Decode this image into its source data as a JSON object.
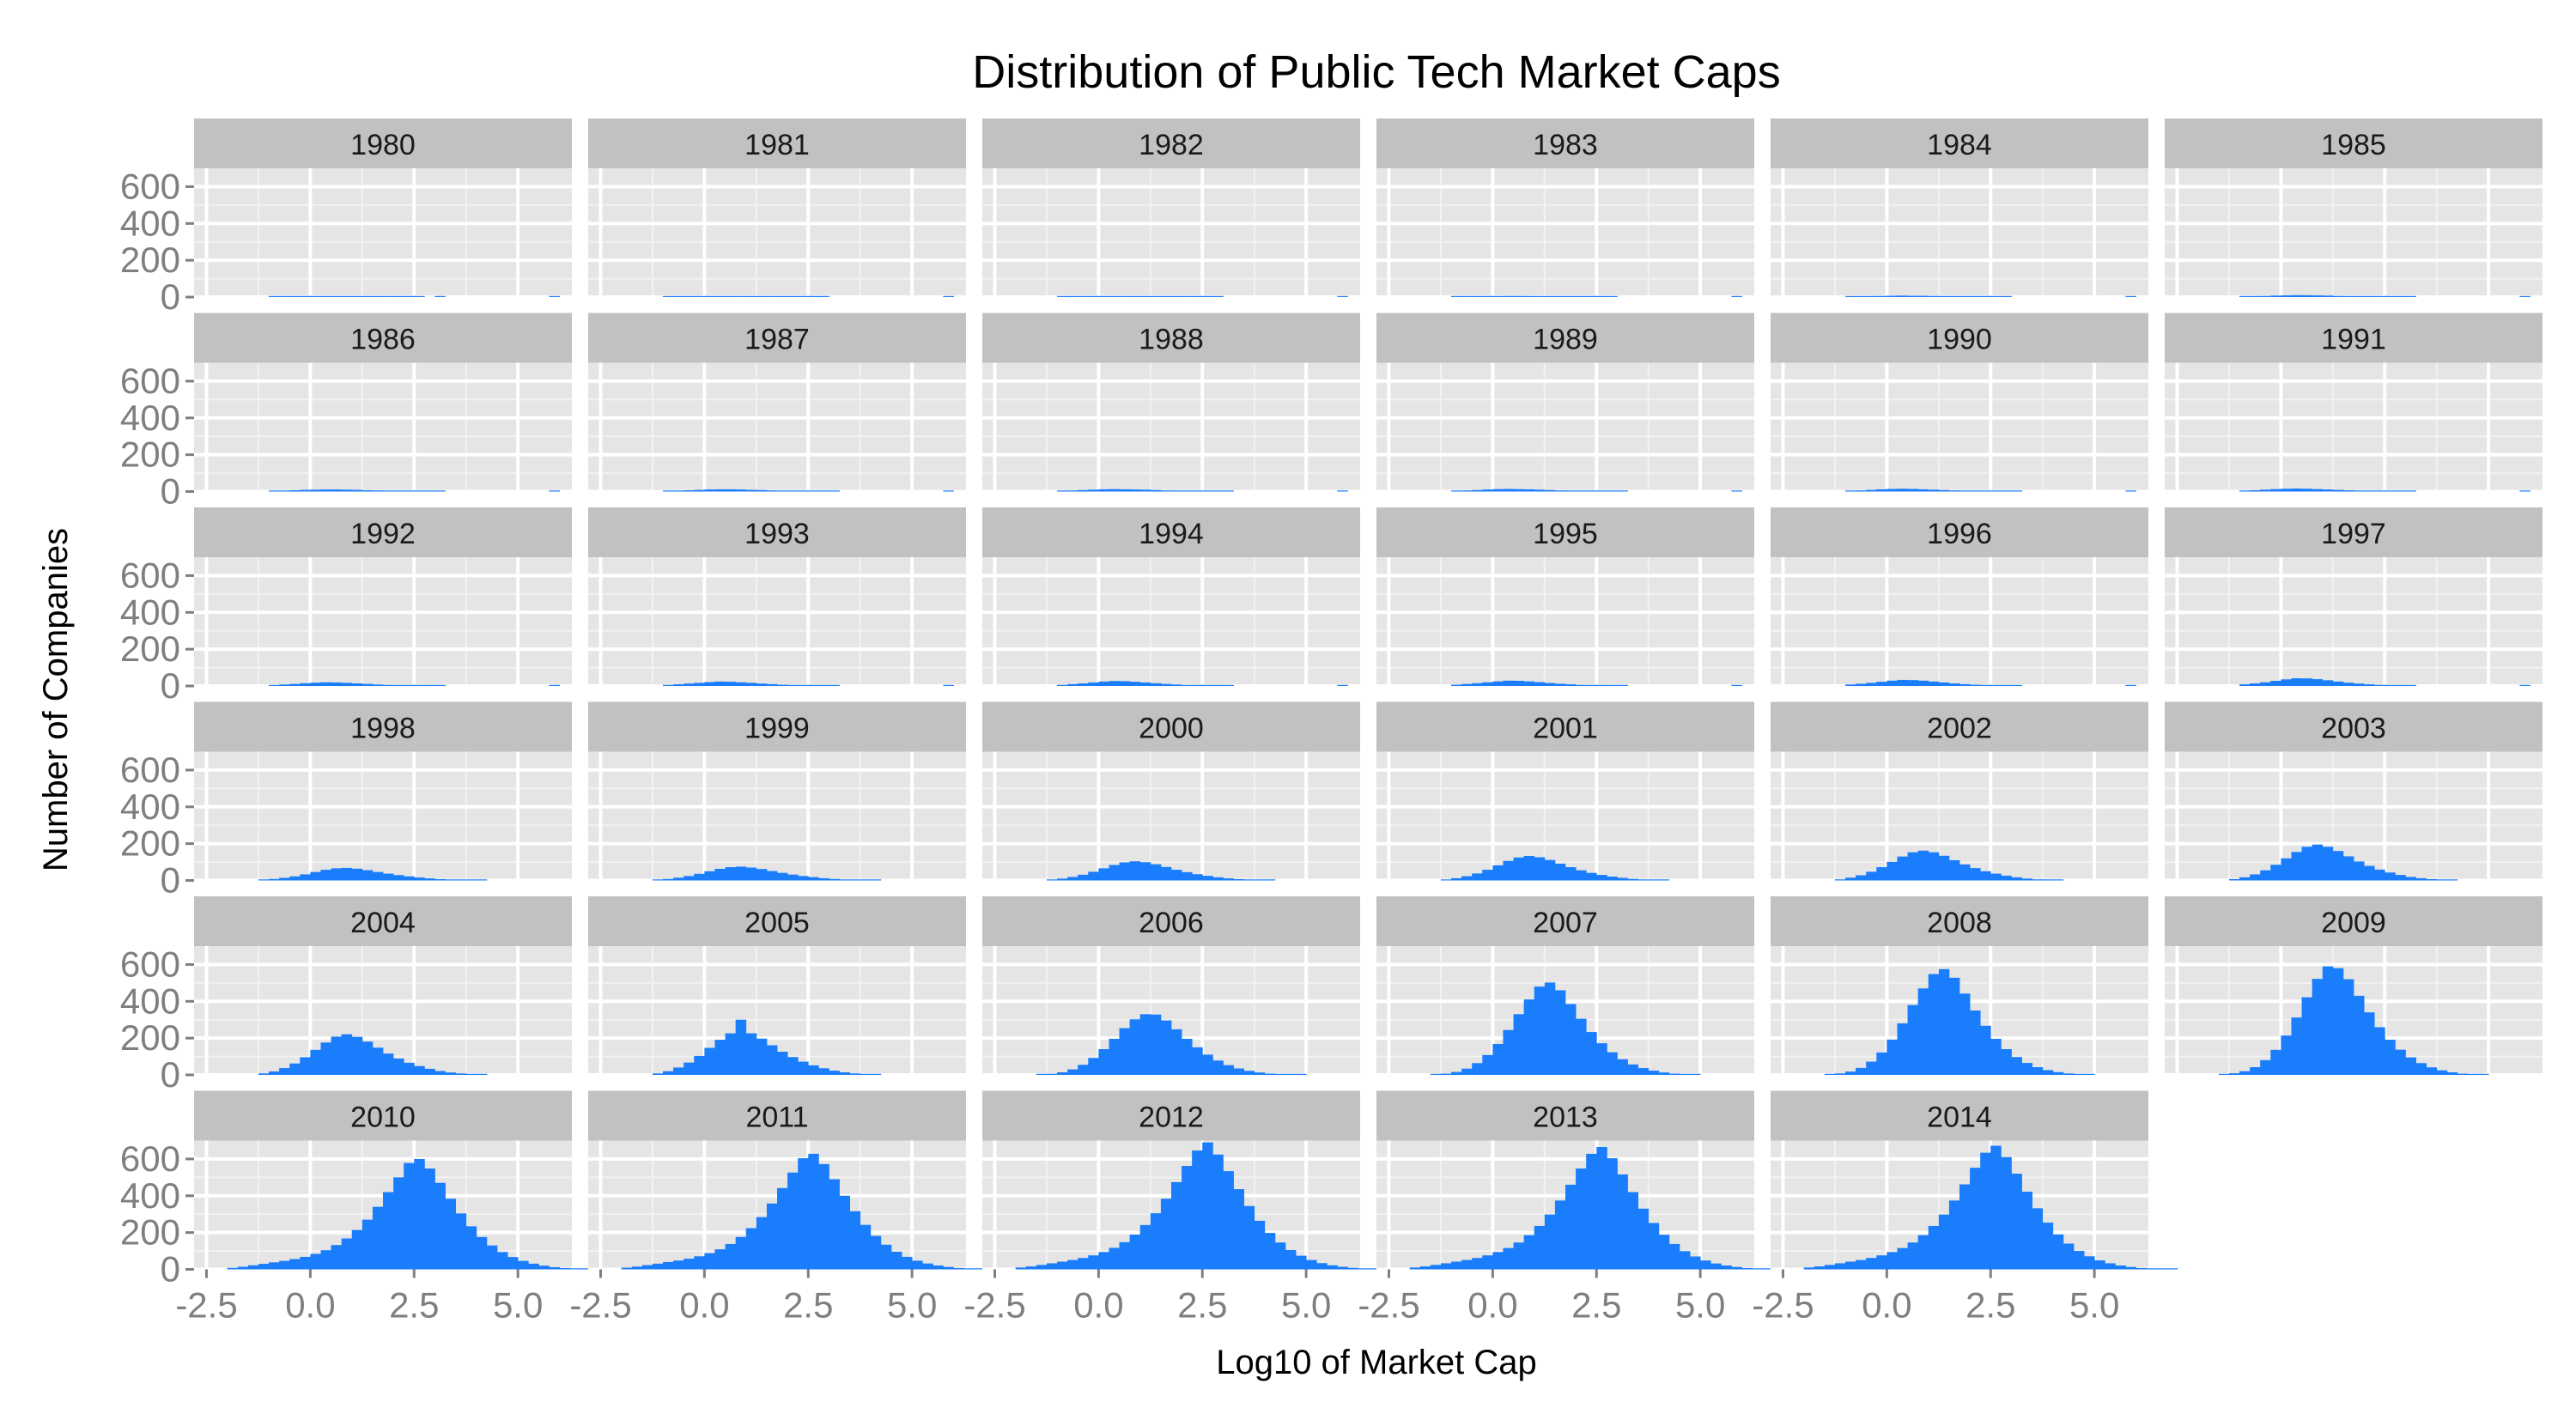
{
  "chart_data": {
    "type": "bar",
    "title": "Distribution of Public Tech Market Caps",
    "xlabel": "Log10 of Market Cap",
    "ylabel": "Number of Companies",
    "xlim": [
      -2.8,
      6.3
    ],
    "ylim": [
      0,
      700
    ],
    "x_ticks": [
      -2.5,
      0.0,
      2.5,
      5.0
    ],
    "x_tick_labels": [
      "-2.5",
      "0.0",
      "2.5",
      "5.0"
    ],
    "y_ticks": [
      0,
      200,
      400,
      600
    ],
    "y_tick_labels": [
      "0",
      "200",
      "400",
      "600"
    ],
    "bin_width": 0.25,
    "grid": true,
    "legend": "none",
    "facet_columns": 6,
    "colors": {
      "bar": "#1a7dfc",
      "panel_background": "#e5e5e5",
      "strip_background": "#c1c1c1",
      "grid": "#ffffff",
      "axis_text": "#7f7f7f",
      "strip_text": "#1a1a1a",
      "title_text": "#000000"
    },
    "panels": [
      {
        "label": "1980",
        "x_start": -1.0,
        "values": [
          3,
          3,
          4,
          4,
          5,
          4,
          4,
          3,
          3,
          3,
          2,
          2,
          1,
          1,
          1,
          0,
          1,
          0,
          0,
          0,
          0,
          0,
          0,
          0,
          0,
          0,
          0,
          1
        ]
      },
      {
        "label": "1981",
        "x_start": -1.0,
        "values": [
          2,
          3,
          4,
          4,
          5,
          5,
          4,
          4,
          3,
          3,
          2,
          2,
          2,
          1,
          1,
          1,
          0,
          0,
          0,
          0,
          0,
          0,
          0,
          0,
          0,
          0,
          0,
          1
        ]
      },
      {
        "label": "1982",
        "x_start": -1.0,
        "values": [
          2,
          3,
          3,
          4,
          5,
          5,
          5,
          4,
          4,
          3,
          3,
          2,
          2,
          1,
          1,
          1,
          0,
          0,
          0,
          0,
          0,
          0,
          0,
          0,
          0,
          0,
          0,
          1
        ]
      },
      {
        "label": "1983",
        "x_start": -1.0,
        "values": [
          2,
          3,
          4,
          4,
          5,
          6,
          6,
          5,
          5,
          4,
          3,
          2,
          2,
          1,
          1,
          1,
          0,
          0,
          0,
          0,
          0,
          0,
          0,
          0,
          0,
          0,
          0,
          1
        ]
      },
      {
        "label": "1984",
        "x_start": -1.0,
        "values": [
          3,
          4,
          5,
          6,
          7,
          8,
          7,
          7,
          6,
          5,
          4,
          3,
          2,
          2,
          1,
          1,
          0,
          0,
          0,
          0,
          0,
          0,
          0,
          0,
          0,
          0,
          0,
          1
        ]
      },
      {
        "label": "1985",
        "x_start": -1.0,
        "values": [
          3,
          5,
          6,
          8,
          9,
          10,
          10,
          9,
          8,
          6,
          5,
          4,
          3,
          2,
          2,
          1,
          1,
          0,
          0,
          0,
          0,
          0,
          0,
          0,
          0,
          0,
          0,
          1
        ]
      },
      {
        "label": "1986",
        "x_start": -1.0,
        "values": [
          3,
          5,
          7,
          9,
          10,
          11,
          11,
          10,
          9,
          7,
          6,
          4,
          3,
          2,
          2,
          1,
          1,
          0,
          0,
          0,
          0,
          0,
          0,
          0,
          0,
          0,
          0,
          1
        ]
      },
      {
        "label": "1987",
        "x_start": -1.0,
        "values": [
          3,
          5,
          7,
          9,
          11,
          12,
          12,
          11,
          9,
          8,
          6,
          5,
          3,
          2,
          2,
          1,
          1,
          0,
          0,
          0,
          0,
          0,
          0,
          0,
          0,
          0,
          0,
          1
        ]
      },
      {
        "label": "1988",
        "x_start": -1.0,
        "values": [
          4,
          6,
          8,
          10,
          12,
          13,
          12,
          11,
          10,
          8,
          6,
          5,
          4,
          3,
          2,
          1,
          1,
          0,
          0,
          0,
          0,
          0,
          0,
          0,
          0,
          0,
          0,
          1
        ]
      },
      {
        "label": "1989",
        "x_start": -1.0,
        "values": [
          4,
          6,
          8,
          11,
          13,
          14,
          13,
          12,
          10,
          8,
          6,
          5,
          4,
          3,
          2,
          1,
          1,
          0,
          0,
          0,
          0,
          0,
          0,
          0,
          0,
          0,
          0,
          1
        ]
      },
      {
        "label": "1990",
        "x_start": -1.0,
        "values": [
          4,
          6,
          9,
          12,
          14,
          15,
          14,
          12,
          10,
          8,
          6,
          5,
          4,
          3,
          2,
          1,
          1,
          0,
          0,
          0,
          0,
          0,
          0,
          0,
          0,
          0,
          0,
          1
        ]
      },
      {
        "label": "1991",
        "x_start": -1.0,
        "values": [
          4,
          7,
          10,
          13,
          15,
          16,
          15,
          13,
          11,
          9,
          7,
          5,
          4,
          3,
          2,
          1,
          1,
          0,
          0,
          0,
          0,
          0,
          0,
          0,
          0,
          0,
          0,
          1
        ]
      },
      {
        "label": "1992",
        "x_start": -1.0,
        "values": [
          5,
          8,
          11,
          15,
          18,
          20,
          19,
          17,
          14,
          11,
          8,
          6,
          4,
          3,
          2,
          1,
          1,
          0,
          0,
          0,
          0,
          0,
          0,
          0,
          0,
          0,
          0,
          1
        ]
      },
      {
        "label": "1993",
        "x_start": -1.0,
        "values": [
          6,
          9,
          13,
          17,
          21,
          24,
          23,
          20,
          17,
          13,
          10,
          7,
          5,
          3,
          2,
          1,
          1,
          0,
          0,
          0,
          0,
          0,
          0,
          0,
          0,
          0,
          0,
          1
        ]
      },
      {
        "label": "1994",
        "x_start": -1.0,
        "values": [
          6,
          10,
          14,
          19,
          24,
          27,
          26,
          23,
          19,
          15,
          11,
          8,
          5,
          4,
          2,
          1,
          1,
          0,
          0,
          0,
          0,
          0,
          0,
          0,
          0,
          0,
          0,
          1
        ]
      },
      {
        "label": "1995",
        "x_start": -1.0,
        "values": [
          7,
          11,
          15,
          20,
          25,
          29,
          28,
          25,
          21,
          16,
          12,
          9,
          6,
          4,
          3,
          2,
          1,
          0,
          0,
          0,
          0,
          0,
          0,
          0,
          0,
          0,
          0,
          1
        ]
      },
      {
        "label": "1996",
        "x_start": -1.0,
        "values": [
          8,
          12,
          17,
          23,
          29,
          33,
          32,
          29,
          24,
          19,
          14,
          10,
          7,
          5,
          3,
          2,
          1,
          0,
          0,
          0,
          0,
          0,
          0,
          0,
          0,
          0,
          0,
          1
        ]
      },
      {
        "label": "1997",
        "x_start": -1.0,
        "values": [
          9,
          14,
          20,
          28,
          36,
          42,
          41,
          37,
          31,
          24,
          18,
          13,
          9,
          6,
          4,
          2,
          1,
          0,
          0,
          0,
          0,
          0,
          0,
          0,
          0,
          0,
          0,
          1
        ]
      },
      {
        "label": "1998",
        "x_start": -1.25,
        "values": [
          3,
          8,
          14,
          22,
          33,
          46,
          58,
          66,
          68,
          64,
          56,
          46,
          37,
          29,
          22,
          16,
          11,
          7,
          4,
          2,
          1,
          1,
          0,
          0,
          0,
          0,
          0,
          0,
          0,
          0
        ]
      },
      {
        "label": "1999",
        "x_start": -1.25,
        "values": [
          3,
          8,
          15,
          24,
          36,
          50,
          63,
          72,
          75,
          70,
          62,
          51,
          41,
          32,
          24,
          18,
          12,
          8,
          5,
          3,
          1,
          1,
          0,
          0,
          0,
          0,
          0,
          0,
          0,
          0
        ]
      },
      {
        "label": "2000",
        "x_start": -1.25,
        "values": [
          4,
          10,
          19,
          31,
          47,
          66,
          84,
          98,
          104,
          99,
          88,
          73,
          58,
          45,
          34,
          25,
          17,
          11,
          7,
          4,
          2,
          1,
          0,
          0,
          0,
          0,
          0,
          0,
          0,
          0
        ]
      },
      {
        "label": "2001",
        "x_start": -1.25,
        "values": [
          5,
          12,
          23,
          38,
          58,
          82,
          106,
          125,
          133,
          126,
          111,
          91,
          72,
          55,
          41,
          30,
          21,
          14,
          8,
          5,
          3,
          1,
          0,
          0,
          0,
          0,
          0,
          0,
          0,
          0
        ]
      },
      {
        "label": "2002",
        "x_start": -1.25,
        "values": [
          6,
          15,
          28,
          47,
          72,
          101,
          130,
          153,
          162,
          153,
          134,
          110,
          87,
          67,
          50,
          37,
          26,
          17,
          10,
          6,
          3,
          1,
          0,
          0,
          0,
          0,
          0,
          0,
          0,
          0
        ]
      },
      {
        "label": "2003",
        "x_start": -1.25,
        "values": [
          7,
          17,
          33,
          55,
          85,
          120,
          155,
          183,
          195,
          183,
          160,
          131,
          103,
          79,
          59,
          43,
          30,
          19,
          12,
          7,
          4,
          2,
          0,
          0,
          0,
          0,
          0,
          0,
          0,
          0
        ]
      },
      {
        "label": "2004",
        "x_start": -1.25,
        "values": [
          8,
          19,
          37,
          62,
          96,
          136,
          176,
          208,
          221,
          207,
          181,
          148,
          116,
          89,
          66,
          48,
          33,
          21,
          13,
          8,
          4,
          2,
          0,
          0,
          0,
          0,
          0,
          0,
          0,
          0
        ]
      },
      {
        "label": "2005",
        "x_start": -1.25,
        "values": [
          8,
          20,
          40,
          67,
          103,
          147,
          191,
          226,
          300,
          226,
          197,
          161,
          126,
          97,
          72,
          52,
          36,
          23,
          14,
          8,
          4,
          2,
          0,
          0,
          0,
          0,
          0,
          0,
          0,
          0
        ]
      },
      {
        "label": "2006",
        "x_start": -1.5,
        "values": [
          2,
          6,
          14,
          30,
          55,
          92,
          140,
          196,
          254,
          302,
          330,
          328,
          296,
          248,
          196,
          150,
          110,
          78,
          53,
          35,
          22,
          13,
          7,
          4,
          2,
          1,
          0,
          0,
          0,
          0
        ]
      },
      {
        "label": "2007",
        "x_start": -1.5,
        "values": [
          2,
          7,
          16,
          34,
          64,
          108,
          168,
          244,
          330,
          410,
          480,
          502,
          460,
          385,
          305,
          233,
          172,
          123,
          85,
          57,
          37,
          23,
          13,
          7,
          3,
          1,
          0,
          0,
          0,
          0
        ]
      },
      {
        "label": "2008",
        "x_start": -1.5,
        "values": [
          3,
          8,
          18,
          38,
          72,
          122,
          192,
          280,
          380,
          470,
          548,
          575,
          528,
          442,
          350,
          267,
          196,
          140,
          97,
          65,
          42,
          26,
          15,
          8,
          4,
          2,
          0,
          0,
          0,
          0
        ]
      },
      {
        "label": "2009",
        "x_start": -1.5,
        "values": [
          3,
          9,
          20,
          42,
          80,
          136,
          214,
          312,
          422,
          522,
          590,
          580,
          520,
          430,
          340,
          259,
          191,
          137,
          95,
          64,
          41,
          25,
          14,
          7,
          3,
          1,
          0,
          0,
          0,
          0
        ]
      },
      {
        "label": "2010",
        "x_start": -2.0,
        "values": [
          8,
          14,
          22,
          30,
          38,
          46,
          56,
          68,
          84,
          104,
          132,
          168,
          214,
          270,
          340,
          420,
          500,
          578,
          600,
          548,
          470,
          384,
          304,
          234,
          176,
          130,
          94,
          67,
          46,
          31,
          20,
          12,
          7,
          4,
          2,
          1,
          0,
          0
        ]
      },
      {
        "label": "2011",
        "x_start": -2.0,
        "values": [
          9,
          15,
          23,
          31,
          40,
          48,
          58,
          71,
          88,
          109,
          138,
          176,
          224,
          284,
          358,
          442,
          526,
          604,
          628,
          572,
          490,
          400,
          316,
          242,
          182,
          134,
          96,
          68,
          47,
          32,
          21,
          13,
          7,
          4,
          2,
          1,
          0,
          0
        ]
      },
      {
        "label": "2012",
        "x_start": -2.0,
        "values": [
          10,
          16,
          24,
          33,
          42,
          51,
          62,
          76,
          94,
          117,
          148,
          189,
          241,
          305,
          384,
          474,
          562,
          646,
          690,
          624,
          534,
          436,
          344,
          264,
          198,
          146,
          105,
          74,
          51,
          34,
          22,
          14,
          8,
          4,
          2,
          1,
          0,
          0
        ]
      },
      {
        "label": "2013",
        "x_start": -2.0,
        "values": [
          10,
          16,
          24,
          33,
          42,
          51,
          62,
          76,
          94,
          116,
          146,
          186,
          236,
          298,
          374,
          460,
          548,
          628,
          665,
          604,
          516,
          420,
          330,
          252,
          188,
          138,
          99,
          70,
          48,
          32,
          21,
          13,
          7,
          4,
          2,
          1,
          0,
          0
        ]
      },
      {
        "label": "2014",
        "x_start": -2.0,
        "values": [
          10,
          16,
          24,
          33,
          42,
          51,
          62,
          76,
          94,
          116,
          146,
          186,
          236,
          298,
          374,
          462,
          552,
          634,
          672,
          610,
          520,
          422,
          332,
          254,
          190,
          140,
          100,
          71,
          49,
          33,
          21,
          13,
          7,
          4,
          2,
          1,
          0,
          0
        ]
      }
    ]
  }
}
